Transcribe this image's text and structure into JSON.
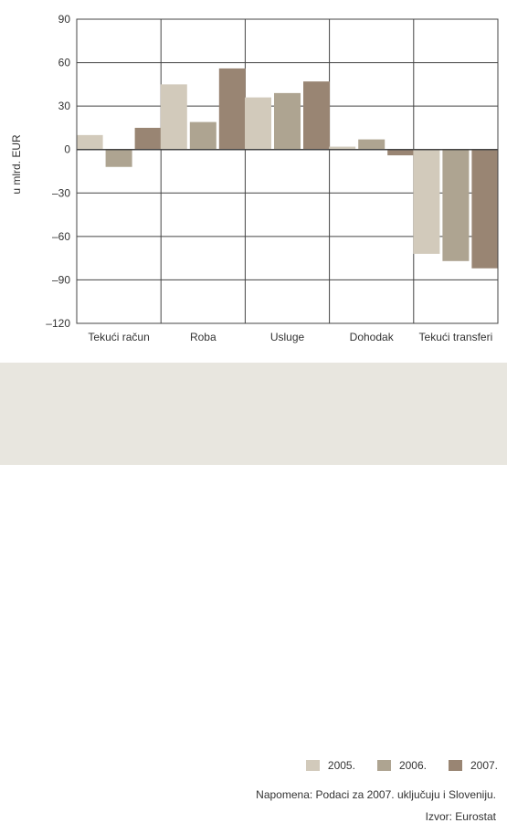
{
  "chart_data": {
    "type": "bar",
    "categories": [
      "Tekući račun",
      "Roba",
      "Usluge",
      "Dohodak",
      "Tekući transferi"
    ],
    "series": [
      {
        "name": "2005.",
        "color": "#d2cabb",
        "values": [
          10,
          45,
          36,
          2,
          -72
        ]
      },
      {
        "name": "2006.",
        "color": "#aea491",
        "values": [
          -12,
          19,
          39,
          7,
          -77
        ]
      },
      {
        "name": "2007.",
        "color": "#998573",
        "values": [
          15,
          56,
          47,
          -4,
          -82
        ]
      }
    ],
    "ylabel": "u mlrd. EUR",
    "ylim": [
      -120,
      90
    ],
    "yticks": [
      90,
      60,
      30,
      0,
      -30,
      -60,
      -90,
      -120
    ],
    "ytick_labels": [
      "90",
      "60",
      "30",
      "0",
      "–30",
      "–60",
      "–90",
      "–120"
    ],
    "grid": true,
    "legend_position": "bottom-right"
  },
  "note": "Napomena: Podaci za 2007. uključuju i Sloveniju.",
  "source": "Izvor: Eurostat"
}
